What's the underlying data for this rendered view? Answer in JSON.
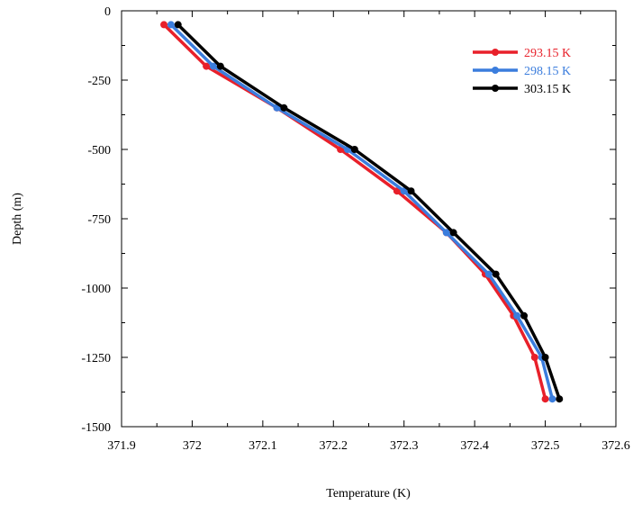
{
  "chart_data": {
    "type": "line",
    "title": "",
    "xlabel": "Temperature (K)",
    "ylabel": "Depth (m)",
    "xlim": [
      371.9,
      372.6
    ],
    "ylim": [
      -1500,
      0
    ],
    "x_ticks": [
      371.9,
      372.0,
      372.1,
      372.2,
      372.3,
      372.4,
      372.5,
      372.6
    ],
    "x_tick_labels": [
      "371.9",
      "372",
      "372.1",
      "372.2",
      "372.3",
      "372.4",
      "372.5",
      "372.6"
    ],
    "y_ticks": [
      0,
      -250,
      -500,
      -750,
      -1000,
      -1250,
      -1500
    ],
    "y_tick_labels": [
      "0",
      "-250",
      "-500",
      "-750",
      "-1000",
      "-1250",
      "-1500"
    ],
    "grid": false,
    "legend_position": "top-right",
    "depth": [
      -50,
      -200,
      -350,
      -500,
      -650,
      -800,
      -950,
      -1100,
      -1250,
      -1400
    ],
    "series": [
      {
        "name": "293.15 K",
        "color": "#e8202a",
        "x": [
          371.96,
          372.02,
          372.12,
          372.21,
          372.29,
          372.36,
          372.415,
          372.455,
          372.485,
          372.5
        ]
      },
      {
        "name": "298.15 K",
        "color": "#3b7ddd",
        "x": [
          371.97,
          372.03,
          372.12,
          372.22,
          372.3,
          372.36,
          372.42,
          372.46,
          372.495,
          372.51
        ]
      },
      {
        "name": "303.15 K",
        "color": "#000000",
        "x": [
          371.98,
          372.04,
          372.13,
          372.23,
          372.31,
          372.37,
          372.43,
          372.47,
          372.5,
          372.52
        ]
      }
    ]
  }
}
